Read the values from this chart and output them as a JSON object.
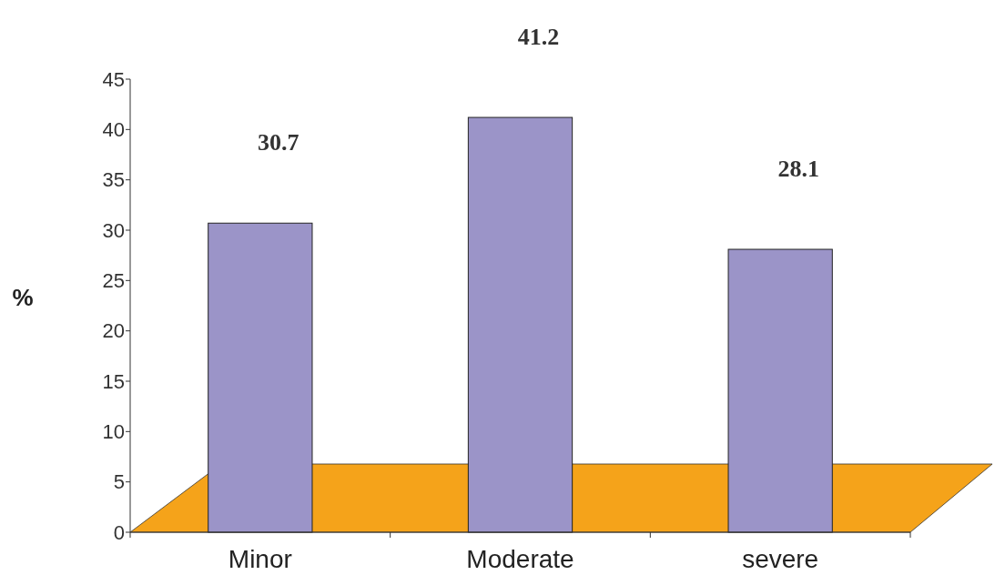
{
  "chart_data": {
    "type": "bar",
    "ylabel": "%",
    "categories": [
      "Minor",
      "Moderate",
      "severe"
    ],
    "values": [
      30.7,
      41.2,
      28.1
    ],
    "color": "#9b94c8",
    "ylim": [
      0,
      45
    ],
    "yticks": [
      0,
      5,
      10,
      15,
      20,
      25,
      30,
      35,
      40,
      45
    ],
    "data_labels": true
  }
}
